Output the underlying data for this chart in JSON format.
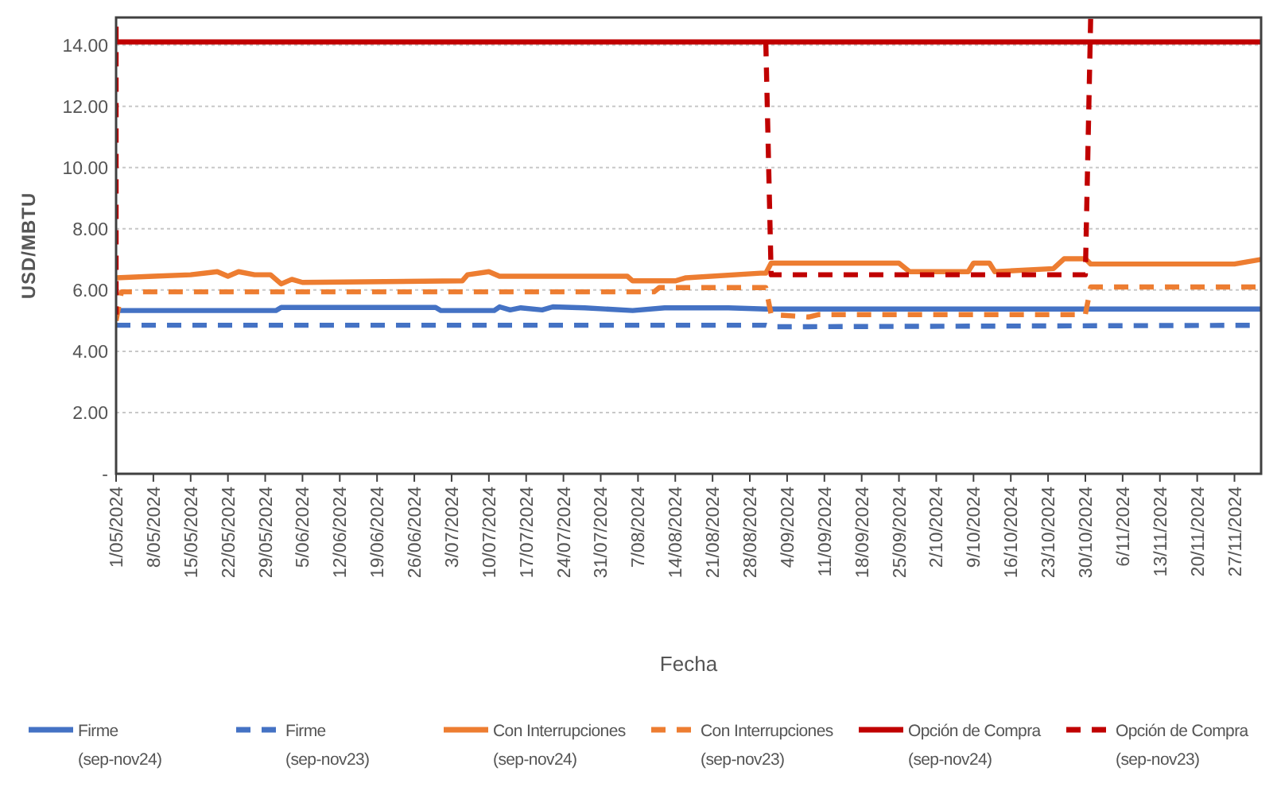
{
  "chart_data": {
    "type": "line",
    "xlabel": "Fecha",
    "ylabel": "USD/MBTU",
    "xlim": [
      "2024-05-01",
      "2024-12-02"
    ],
    "ylim": [
      0,
      14.9
    ],
    "yticks": [
      {
        "value": 0,
        "label": "-"
      },
      {
        "value": 2,
        "label": "2.00"
      },
      {
        "value": 4,
        "label": "4.00"
      },
      {
        "value": 6,
        "label": "6.00"
      },
      {
        "value": 8,
        "label": "8.00"
      },
      {
        "value": 10,
        "label": "10.00"
      },
      {
        "value": 12,
        "label": "12.00"
      },
      {
        "value": 14,
        "label": "14.00"
      }
    ],
    "xticks": [
      {
        "value": "2024-05-01",
        "label": "1/05/2024"
      },
      {
        "value": "2024-05-08",
        "label": "8/05/2024"
      },
      {
        "value": "2024-05-15",
        "label": "15/05/2024"
      },
      {
        "value": "2024-05-22",
        "label": "22/05/2024"
      },
      {
        "value": "2024-05-29",
        "label": "29/05/2024"
      },
      {
        "value": "2024-06-05",
        "label": "5/06/2024"
      },
      {
        "value": "2024-06-12",
        "label": "12/06/2024"
      },
      {
        "value": "2024-06-19",
        "label": "19/06/2024"
      },
      {
        "value": "2024-06-26",
        "label": "26/06/2024"
      },
      {
        "value": "2024-07-03",
        "label": "3/07/2024"
      },
      {
        "value": "2024-07-10",
        "label": "10/07/2024"
      },
      {
        "value": "2024-07-17",
        "label": "17/07/2024"
      },
      {
        "value": "2024-07-24",
        "label": "24/07/2024"
      },
      {
        "value": "2024-07-31",
        "label": "31/07/2024"
      },
      {
        "value": "2024-08-07",
        "label": "7/08/2024"
      },
      {
        "value": "2024-08-14",
        "label": "14/08/2024"
      },
      {
        "value": "2024-08-21",
        "label": "21/08/2024"
      },
      {
        "value": "2024-08-28",
        "label": "28/08/2024"
      },
      {
        "value": "2024-09-04",
        "label": "4/09/2024"
      },
      {
        "value": "2024-09-11",
        "label": "11/09/2024"
      },
      {
        "value": "2024-09-18",
        "label": "18/09/2024"
      },
      {
        "value": "2024-09-25",
        "label": "25/09/2024"
      },
      {
        "value": "2024-10-02",
        "label": "2/10/2024"
      },
      {
        "value": "2024-10-09",
        "label": "9/10/2024"
      },
      {
        "value": "2024-10-16",
        "label": "16/10/2024"
      },
      {
        "value": "2024-10-23",
        "label": "23/10/2024"
      },
      {
        "value": "2024-10-30",
        "label": "30/10/2024"
      },
      {
        "value": "2024-11-06",
        "label": "6/11/2024"
      },
      {
        "value": "2024-11-13",
        "label": "13/11/2024"
      },
      {
        "value": "2024-11-20",
        "label": "20/11/2024"
      },
      {
        "value": "2024-11-27",
        "label": "27/11/2024"
      }
    ],
    "grid": "y",
    "legend": "bottom",
    "marker": "none",
    "series": [
      {
        "name": "Firme (sep-nov24)",
        "color": "#4472c4",
        "line_style": "solid",
        "x": [
          "2024-05-01",
          "2024-05-31",
          "2024-06-01",
          "2024-06-30",
          "2024-07-01",
          "2024-07-11",
          "2024-07-12",
          "2024-07-14",
          "2024-07-16",
          "2024-07-20",
          "2024-07-22",
          "2024-07-28",
          "2024-08-06",
          "2024-08-12",
          "2024-08-24",
          "2024-08-31",
          "2024-12-02"
        ],
        "values": [
          5.33,
          5.33,
          5.43,
          5.43,
          5.33,
          5.33,
          5.45,
          5.35,
          5.42,
          5.35,
          5.45,
          5.42,
          5.33,
          5.42,
          5.42,
          5.38,
          5.38
        ]
      },
      {
        "name": "Firme (sep-nov23)",
        "color": "#4472c4",
        "line_style": "dashed",
        "x": [
          "2024-05-01",
          "2024-08-31",
          "2024-09-01",
          "2024-12-02"
        ],
        "values": [
          4.85,
          4.85,
          4.8,
          4.85
        ]
      },
      {
        "name": "Con Interrupciones (sep-nov24)",
        "color": "#ed7d31",
        "line_style": "solid",
        "x": [
          "2024-05-01",
          "2024-05-08",
          "2024-05-15",
          "2024-05-20",
          "2024-05-22",
          "2024-05-24",
          "2024-05-27",
          "2024-05-30",
          "2024-06-01",
          "2024-06-03",
          "2024-06-05",
          "2024-07-05",
          "2024-07-06",
          "2024-07-10",
          "2024-07-12",
          "2024-08-05",
          "2024-08-06",
          "2024-08-14",
          "2024-08-16",
          "2024-08-30",
          "2024-08-31",
          "2024-09-01",
          "2024-09-25",
          "2024-09-27",
          "2024-10-08",
          "2024-10-09",
          "2024-10-12",
          "2024-10-13",
          "2024-10-24",
          "2024-10-26",
          "2024-10-30",
          "2024-10-31",
          "2024-11-27",
          "2024-12-02"
        ],
        "values": [
          6.4,
          6.45,
          6.5,
          6.6,
          6.45,
          6.6,
          6.5,
          6.5,
          6.2,
          6.35,
          6.25,
          6.3,
          6.5,
          6.6,
          6.45,
          6.45,
          6.3,
          6.3,
          6.4,
          6.55,
          6.55,
          6.88,
          6.88,
          6.6,
          6.6,
          6.88,
          6.88,
          6.6,
          6.7,
          7.02,
          7.02,
          6.85,
          6.85,
          7.0
        ]
      },
      {
        "name": "Con Interrupciones (sep-nov23)",
        "color": "#ed7d31",
        "line_style": "dashed",
        "x": [
          "2024-05-01",
          "2024-05-02",
          "2024-08-10",
          "2024-08-11",
          "2024-08-31",
          "2024-09-01",
          "2024-09-08",
          "2024-09-10",
          "2024-10-30",
          "2024-10-31",
          "2024-12-02"
        ],
        "values": [
          5.0,
          5.94,
          5.94,
          6.08,
          6.08,
          5.2,
          5.12,
          5.2,
          5.2,
          6.1,
          6.1
        ]
      },
      {
        "name": "Opción de Compra (sep-nov24)",
        "color": "#c00000",
        "line_style": "solid",
        "x": [
          "2024-05-01",
          "2024-12-02"
        ],
        "values": [
          14.1,
          14.1
        ]
      },
      {
        "name": "Opción de Compra (sep-nov23)",
        "color": "#c00000",
        "line_style": "dashed",
        "x": [
          "2024-05-01",
          "2024-05-01",
          "2024-05-02",
          "2024-08-31",
          "2024-09-01",
          "2024-10-30",
          "2024-10-31"
        ],
        "values": [
          14.6,
          5.2,
          null,
          14.1,
          6.5,
          6.5,
          14.9
        ]
      }
    ]
  }
}
